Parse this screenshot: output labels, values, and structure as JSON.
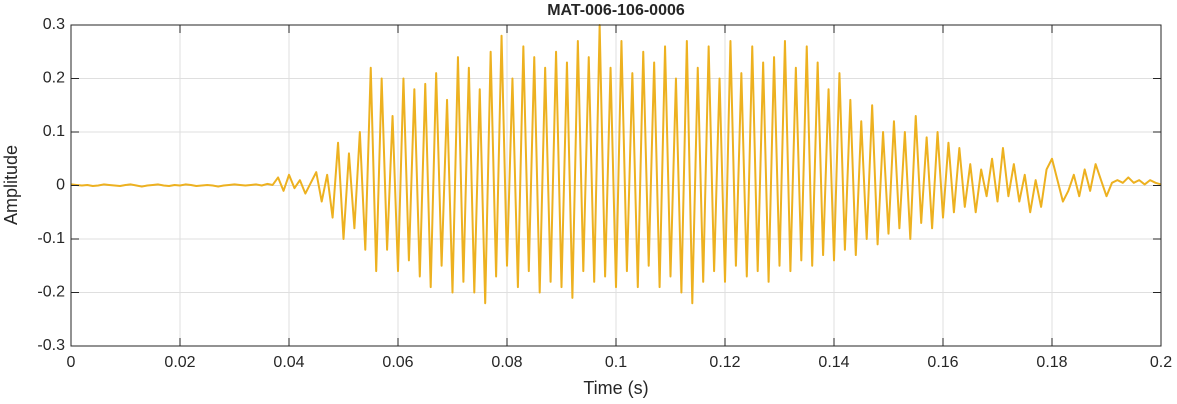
{
  "chart_data": {
    "type": "line",
    "title": "MAT-006-106-0006",
    "xlabel": "Time (s)",
    "ylabel": "Amplitude",
    "x": [
      0,
      0.001,
      0.002,
      0.003,
      0.004,
      0.005,
      0.006,
      0.007,
      0.008,
      0.009,
      0.01,
      0.011,
      0.012,
      0.013,
      0.014,
      0.015,
      0.016,
      0.017,
      0.018,
      0.019,
      0.02,
      0.021,
      0.022,
      0.023,
      0.024,
      0.025,
      0.026,
      0.027,
      0.028,
      0.029,
      0.03,
      0.031,
      0.032,
      0.033,
      0.034,
      0.035,
      0.036,
      0.037,
      0.038,
      0.039,
      0.04,
      0.041,
      0.042,
      0.043,
      0.044,
      0.045,
      0.046,
      0.047,
      0.048,
      0.049,
      0.05,
      0.051,
      0.052,
      0.053,
      0.054,
      0.055,
      0.056,
      0.057,
      0.058,
      0.059,
      0.06,
      0.061,
      0.062,
      0.063,
      0.064,
      0.065,
      0.066,
      0.067,
      0.068,
      0.069,
      0.07,
      0.071,
      0.072,
      0.073,
      0.074,
      0.075,
      0.076,
      0.077,
      0.078,
      0.079,
      0.08,
      0.081,
      0.082,
      0.083,
      0.084,
      0.085,
      0.086,
      0.087,
      0.088,
      0.089,
      0.09,
      0.091,
      0.092,
      0.093,
      0.094,
      0.095,
      0.096,
      0.097,
      0.098,
      0.099,
      0.1,
      0.101,
      0.102,
      0.103,
      0.104,
      0.105,
      0.106,
      0.107,
      0.108,
      0.109,
      0.11,
      0.111,
      0.112,
      0.113,
      0.114,
      0.115,
      0.116,
      0.117,
      0.118,
      0.119,
      0.12,
      0.121,
      0.122,
      0.123,
      0.124,
      0.125,
      0.126,
      0.127,
      0.128,
      0.129,
      0.13,
      0.131,
      0.132,
      0.133,
      0.134,
      0.135,
      0.136,
      0.137,
      0.138,
      0.139,
      0.14,
      0.141,
      0.142,
      0.143,
      0.144,
      0.145,
      0.146,
      0.147,
      0.148,
      0.149,
      0.15,
      0.151,
      0.152,
      0.153,
      0.154,
      0.155,
      0.156,
      0.157,
      0.158,
      0.159,
      0.16,
      0.161,
      0.162,
      0.163,
      0.164,
      0.165,
      0.166,
      0.167,
      0.168,
      0.169,
      0.17,
      0.171,
      0.172,
      0.173,
      0.174,
      0.175,
      0.176,
      0.177,
      0.178,
      0.179,
      0.18,
      0.181,
      0.182,
      0.183,
      0.184,
      0.185,
      0.186,
      0.187,
      0.188,
      0.189,
      0.19,
      0.191,
      0.192,
      0.193,
      0.194,
      0.195,
      0.196,
      0.197,
      0.198,
      0.199,
      0.2
    ],
    "series": [
      {
        "name": "Amplitude",
        "color": "#edb120",
        "values": [
          0.002,
          0.001,
          0,
          0.001,
          -0.001,
          0,
          0.002,
          0.001,
          0,
          -0.001,
          0.001,
          0.002,
          0,
          -0.002,
          0,
          0.001,
          0.002,
          0,
          -0.001,
          0.001,
          0,
          0.002,
          0.001,
          -0.001,
          0,
          0.001,
          0,
          -0.002,
          0,
          0.001,
          0.002,
          0.001,
          0,
          0.001,
          0.002,
          0,
          0.003,
          0.001,
          0.015,
          -0.01,
          0.02,
          -0.005,
          0.01,
          -0.015,
          0.005,
          0.025,
          -0.03,
          0.02,
          -0.06,
          0.08,
          -0.1,
          0.06,
          -0.08,
          0.1,
          -0.12,
          0.22,
          -0.16,
          0.2,
          -0.12,
          0.13,
          -0.16,
          0.2,
          -0.14,
          0.18,
          -0.17,
          0.19,
          -0.19,
          0.21,
          -0.15,
          0.16,
          -0.2,
          0.24,
          -0.18,
          0.22,
          -0.2,
          0.18,
          -0.22,
          0.25,
          -0.17,
          0.28,
          -0.15,
          0.2,
          -0.19,
          0.26,
          -0.16,
          0.24,
          -0.2,
          0.22,
          -0.18,
          0.25,
          -0.19,
          0.23,
          -0.21,
          0.27,
          -0.16,
          0.24,
          -0.18,
          0.3,
          -0.17,
          0.22,
          -0.19,
          0.27,
          -0.16,
          0.21,
          -0.19,
          0.25,
          -0.15,
          0.23,
          -0.19,
          0.26,
          -0.17,
          0.2,
          -0.2,
          0.27,
          -0.22,
          0.22,
          -0.18,
          0.26,
          -0.16,
          0.2,
          -0.18,
          0.27,
          -0.15,
          0.21,
          -0.17,
          0.26,
          -0.16,
          0.23,
          -0.18,
          0.24,
          -0.15,
          0.27,
          -0.16,
          0.22,
          -0.14,
          0.26,
          -0.15,
          0.23,
          -0.13,
          0.18,
          -0.14,
          0.21,
          -0.12,
          0.16,
          -0.13,
          0.12,
          -0.1,
          0.15,
          -0.11,
          0.1,
          -0.09,
          0.12,
          -0.08,
          0.1,
          -0.1,
          0.13,
          -0.07,
          0.09,
          -0.08,
          0.1,
          -0.06,
          0.08,
          -0.05,
          0.07,
          -0.04,
          0.04,
          -0.05,
          0.03,
          -0.02,
          0.05,
          -0.03,
          0.07,
          -0.02,
          0.04,
          -0.03,
          0.02,
          -0.05,
          0.01,
          -0.04,
          0.03,
          0.05,
          0.01,
          -0.03,
          -0.01,
          0.02,
          -0.02,
          0.03,
          -0.01,
          0.04,
          0.01,
          -0.02,
          0.005,
          0.01,
          0.005,
          0.015,
          0.005,
          0.01,
          0.002,
          0.01,
          0.005,
          0.002
        ]
      }
    ],
    "xlim": [
      0,
      0.2
    ],
    "xticks": [
      0,
      0.02,
      0.04,
      0.06,
      0.08,
      0.1,
      0.12,
      0.14,
      0.16,
      0.18,
      0.2
    ],
    "ylim": [
      -0.3,
      0.3
    ],
    "yticks": [
      -0.3,
      -0.2,
      -0.1,
      0,
      0.1,
      0.2,
      0.3
    ],
    "grid": true
  }
}
